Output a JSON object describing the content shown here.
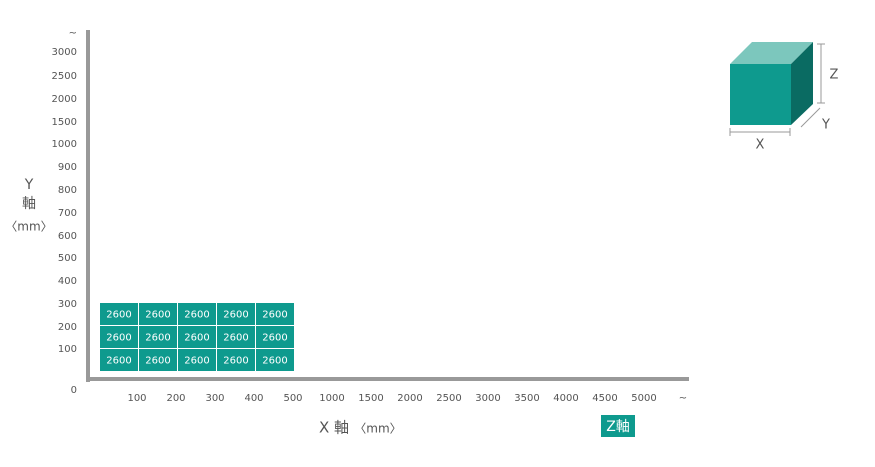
{
  "y_axis": {
    "name": "Y",
    "axis_word": "軸",
    "unit": "〈mm〉",
    "ticks": [
      "~",
      "3000",
      "2500",
      "2000",
      "1500",
      "1000",
      "900",
      "800",
      "700",
      "600",
      "500",
      "400",
      "300",
      "200",
      "100",
      "0"
    ]
  },
  "x_axis": {
    "label": "X 軸",
    "unit": "〈mm〉",
    "ticks": [
      "100",
      "200",
      "300",
      "400",
      "500",
      "1000",
      "1500",
      "2000",
      "2500",
      "3000",
      "3500",
      "4000",
      "4500",
      "5000",
      "~"
    ]
  },
  "z_label": "Z軸",
  "cells": [
    [
      2600,
      2600,
      2600,
      2600,
      2600
    ],
    [
      2600,
      2600,
      2600,
      2600,
      2600
    ],
    [
      2600,
      2600,
      2600,
      2600,
      2600
    ]
  ],
  "cube": {
    "x": "X",
    "y": "Y",
    "z": "Z"
  }
}
